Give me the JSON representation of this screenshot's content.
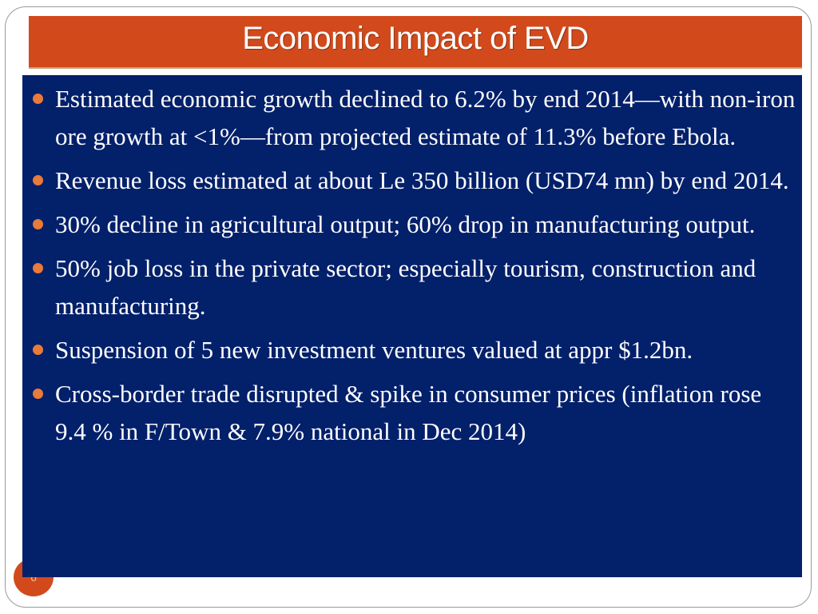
{
  "slide": {
    "title": "Economic Impact of EVD",
    "page_number": "6",
    "bullets": [
      "Estimated economic growth declined to 6.2% by end 2014—with non-iron ore growth at <1%—from projected estimate of 11.3% before Ebola.",
      "Revenue loss estimated at about Le 350 billion (USD74 mn) by end 2014.",
      "30% decline in agricultural output; 60% drop in manufacturing output.",
      "50% job loss in the private sector; especially tourism, construction and manufacturing.",
      "Suspension of 5 new investment ventures valued at appr $1.2bn.",
      "Cross-border trade disrupted & spike in consumer prices (inflation rose 9.4 % in F/Town & 7.9%  national in Dec 2014)"
    ]
  },
  "colors": {
    "title_bar": "#d24a1c",
    "content_background": "#03206a",
    "bullet_marker": "#e87a3a",
    "text": "#ffffff"
  }
}
